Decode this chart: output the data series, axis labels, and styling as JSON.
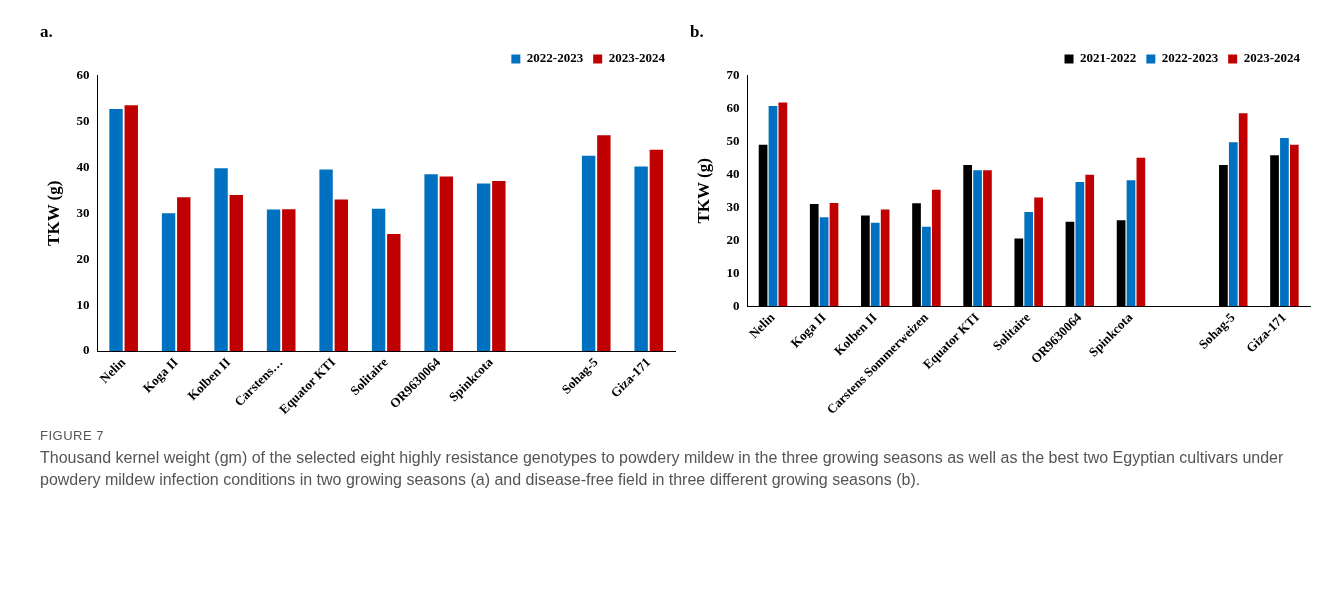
{
  "chart_data": [
    {
      "type": "bar",
      "title": "a.",
      "ylabel": "TKW (g)",
      "categories": [
        "Nelin",
        "Koga II",
        "Kolben II",
        "Carstens…",
        "Equator KTI",
        "Solitaire",
        "OR9630064",
        "Spinkcota",
        null,
        "Sohag-5",
        "Giza-171"
      ],
      "series": [
        {
          "name": "2022-2023",
          "color": "#0070c0",
          "values": [
            52.7,
            30,
            39.8,
            30.8,
            39.5,
            31,
            38.5,
            36.5,
            null,
            42.5,
            40.2
          ]
        },
        {
          "name": "2023-2024",
          "color": "#c00000",
          "values": [
            53.5,
            33.5,
            34,
            30.9,
            33,
            25.5,
            38,
            37,
            null,
            47,
            43.8
          ]
        }
      ],
      "ylim": [
        0,
        60
      ],
      "yticks": [
        0,
        10,
        20,
        30,
        40,
        50,
        60
      ],
      "legend": "top right",
      "annotations": [
        "FIGURE 7",
        "Thousand kernel weight (gm) of the selected eight highly resistance genotypes to powdery mildew in the three growing seasons as well as the best two Egyptian cultivars under powdery mildew infection conditions in two growing seasons (a) and disease-free field in three different growing seasons (b)."
      ]
    },
    {
      "type": "bar",
      "title": "b.",
      "ylabel": "TKW (g)",
      "categories": [
        "Nelin",
        "Koga II",
        "Kolben II",
        "Carstens Sommerweizen",
        "Equator KTI",
        "Solitaire",
        "OR9630064",
        "Spinkcota",
        null,
        "Sohag-5",
        "Giza-171"
      ],
      "series": [
        {
          "name": "2021-2022",
          "color": "#000000",
          "values": [
            49,
            31,
            27.5,
            31.2,
            42.8,
            20.5,
            25.6,
            26.1,
            null,
            42.8,
            45.8
          ]
        },
        {
          "name": "2022-2023",
          "color": "#0070c0",
          "values": [
            60.7,
            27,
            25.3,
            24.1,
            41.2,
            28.6,
            37.7,
            38.2,
            null,
            49.7,
            51
          ]
        },
        {
          "name": "2023-2024",
          "color": "#c00000",
          "values": [
            61.8,
            31.3,
            29.3,
            35.3,
            41.2,
            33,
            39.9,
            45,
            null,
            58.5,
            49
          ]
        }
      ],
      "ylim": [
        0,
        70
      ],
      "yticks": [
        0,
        10,
        20,
        30,
        40,
        50,
        60,
        70
      ],
      "legend": "top right"
    }
  ]
}
